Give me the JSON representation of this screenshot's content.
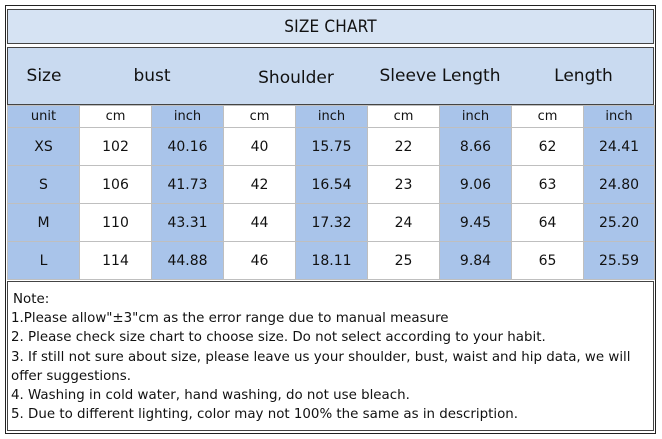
{
  "title": "SIZE CHART",
  "headers": {
    "size": "Size",
    "bust": "bust",
    "shoulder": "Shoulder",
    "sleeve": "Sleeve Length",
    "length": "Length"
  },
  "unit_row": [
    "unit",
    "cm",
    "inch",
    "cm",
    "inch",
    "cm",
    "inch",
    "cm",
    "inch"
  ],
  "rows": [
    [
      "XS",
      "102",
      "40.16",
      "40",
      "15.75",
      "22",
      "8.66",
      "62",
      "24.41"
    ],
    [
      "S",
      "106",
      "41.73",
      "42",
      "16.54",
      "23",
      "9.06",
      "63",
      "24.80"
    ],
    [
      "M",
      "110",
      "43.31",
      "44",
      "17.32",
      "24",
      "9.45",
      "64",
      "25.20"
    ],
    [
      "L",
      "114",
      "44.88",
      "46",
      "18.11",
      "25",
      "9.84",
      "65",
      "25.59"
    ]
  ],
  "notes": {
    "heading": "Note:",
    "lines": [
      "1.Please allow\"±3\"cm as the error range due to manual measure",
      "2. Please check size chart to choose size. Do not select according to your habit.",
      "3. If still not sure about size, please leave us your shoulder, bust, waist and hip data, we will offer suggestions.",
      "4. Washing in cold water, hand washing, do not use bleach.",
      "5. Due to different lighting, color may not 100% the same as in description."
    ]
  },
  "colors": {
    "title_bg": "#d6e3f3",
    "header_bg": "#c9daf0",
    "column_blue": "#a9c4ea"
  }
}
